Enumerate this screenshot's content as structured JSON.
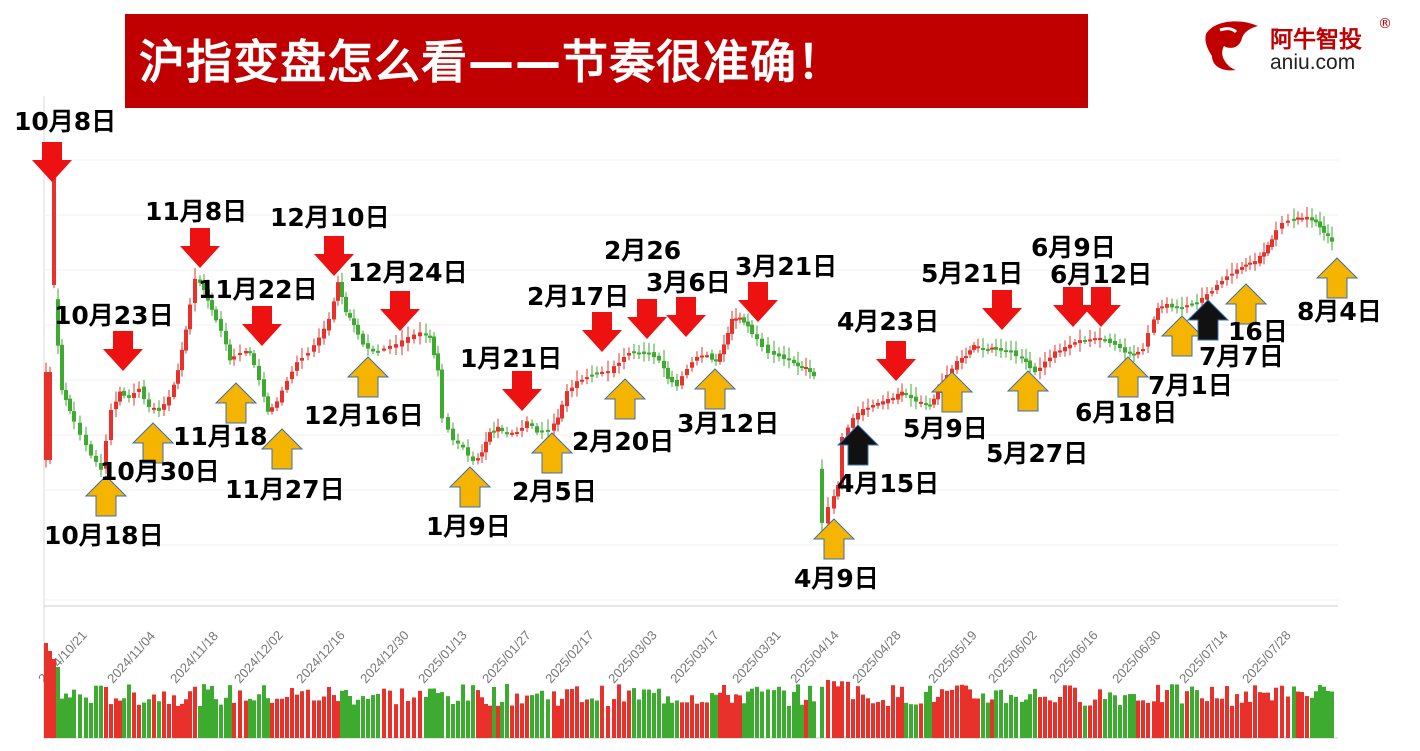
{
  "header": {
    "title": "沪指变盘怎么看——节奏很准确！"
  },
  "logo": {
    "name_cn": "阿牛智投",
    "site": "aniu.com",
    "reg": "®",
    "icon": "bull-head-icon"
  },
  "colors": {
    "banner": "#c00000",
    "up": "#e8312a",
    "down": "#3dab2f",
    "arrow_red": "#ee1111",
    "arrow_yellow": "#f5b400",
    "arrow_black": "#111111"
  },
  "chart_data": {
    "type": "candlestick",
    "title": "",
    "xlabel": "",
    "ylabel": "",
    "x_ticks": [
      "2024/10/21",
      "2024/11/04",
      "2024/11/18",
      "2024/12/02",
      "2024/12/16",
      "2024/12/30",
      "2025/01/13",
      "2025/01/27",
      "2025/02/17",
      "2025/03/03",
      "2025/03/17",
      "2025/03/31",
      "2025/04/14",
      "2025/04/28",
      "2025/05/19",
      "2025/06/02",
      "2025/06/16",
      "2025/06/30",
      "2025/07/14",
      "2025/07/28"
    ],
    "grid": true,
    "legend": "none",
    "annotations": [
      {
        "text": "10月8日",
        "signal": "red"
      },
      {
        "text": "10月18日",
        "signal": "yellow"
      },
      {
        "text": "10月23日",
        "signal": "red"
      },
      {
        "text": "10月30日",
        "signal": "yellow"
      },
      {
        "text": "11月8日",
        "signal": "red"
      },
      {
        "text": "11月18",
        "signal": "yellow"
      },
      {
        "text": "11月22日",
        "signal": "red"
      },
      {
        "text": "11月27日",
        "signal": "yellow"
      },
      {
        "text": "12月10日",
        "signal": "red"
      },
      {
        "text": "12月16日",
        "signal": "yellow"
      },
      {
        "text": "12月24日",
        "signal": "red"
      },
      {
        "text": "1月9日",
        "signal": "yellow"
      },
      {
        "text": "1月21日",
        "signal": "red"
      },
      {
        "text": "2月5日",
        "signal": "yellow"
      },
      {
        "text": "2月17日",
        "signal": "red"
      },
      {
        "text": "2月20日",
        "signal": "yellow"
      },
      {
        "text": "2月26",
        "signal": "red"
      },
      {
        "text": "3月6日",
        "signal": "red"
      },
      {
        "text": "3月12日",
        "signal": "yellow"
      },
      {
        "text": "3月21日",
        "signal": "red"
      },
      {
        "text": "4月9日",
        "signal": "yellow"
      },
      {
        "text": "4月15日",
        "signal": "black"
      },
      {
        "text": "4月23日",
        "signal": "red"
      },
      {
        "text": "5月9日",
        "signal": "yellow"
      },
      {
        "text": "5月21日",
        "signal": "red"
      },
      {
        "text": "5月27日",
        "signal": "yellow"
      },
      {
        "text": "6月9日",
        "signal": "red"
      },
      {
        "text": "6月12日",
        "signal": "red"
      },
      {
        "text": "6月18日",
        "signal": "yellow"
      },
      {
        "text": "7月1日",
        "signal": "yellow"
      },
      {
        "text": "7月7日",
        "signal": "black"
      },
      {
        "text": "16日",
        "signal": "yellow"
      },
      {
        "text": "8月4日",
        "signal": "yellow"
      }
    ]
  }
}
